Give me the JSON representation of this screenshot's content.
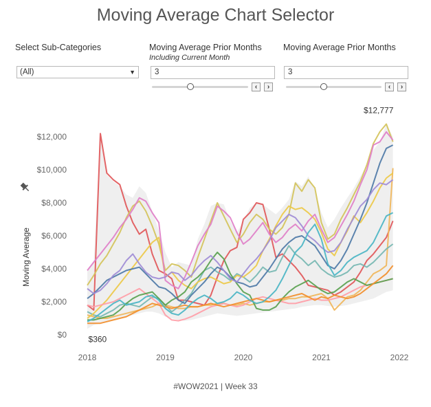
{
  "title": "Moving Average Chart Selector",
  "controls": {
    "subcat_label": "Select Sub-Categories",
    "subcat_value": "(All)",
    "ma1_label": "Moving Average Prior Months",
    "ma1_sublabel": "Including Current Month",
    "ma1_value": "3",
    "ma2_label": "Moving Average Prior Months",
    "ma2_value": "3",
    "dec_symbol": "‹",
    "inc_symbol": "›"
  },
  "footer": "#WOW2021 | Week 33",
  "colors": {
    "band": "#efefef",
    "axis_text": "#666666",
    "series": [
      "#e15759",
      "#d4c35a",
      "#f0b65a",
      "#76b7b2",
      "#edc948",
      "#e07fc8",
      "#ff9da7",
      "#59a14f",
      "#f28e2b",
      "#4e79a7",
      "#a08cd6",
      "#4ab5c4"
    ]
  },
  "chart_data": {
    "type": "line",
    "title": "",
    "ylabel": "Moving Average",
    "xlabel": "",
    "x_ticks": [
      "2018",
      "2019",
      "2020",
      "2021",
      "2022"
    ],
    "y_ticks": [
      "$0",
      "$2,000",
      "$4,000",
      "$6,000",
      "$8,000",
      "$10,000",
      "$12,000"
    ],
    "xlim": [
      2018.0,
      2022.0
    ],
    "ylim": [
      0,
      13000
    ],
    "grid": false,
    "max_label": "$12,777",
    "min_label": "$360",
    "max_point": {
      "x": 2021.83,
      "y": 12777
    },
    "min_point": {
      "x": 2018.04,
      "y": 360
    },
    "x": [
      2018.0,
      2018.083,
      2018.167,
      2018.25,
      2018.333,
      2018.417,
      2018.5,
      2018.583,
      2018.667,
      2018.75,
      2018.833,
      2018.917,
      2019.0,
      2019.083,
      2019.167,
      2019.25,
      2019.333,
      2019.417,
      2019.5,
      2019.583,
      2019.667,
      2019.75,
      2019.833,
      2019.917,
      2020.0,
      2020.083,
      2020.167,
      2020.25,
      2020.333,
      2020.417,
      2020.5,
      2020.583,
      2020.667,
      2020.75,
      2020.833,
      2020.917,
      2021.0,
      2021.083,
      2021.167,
      2021.25,
      2021.333,
      2021.417,
      2021.5,
      2021.583,
      2021.667,
      2021.75,
      2021.833,
      2021.917
    ],
    "band": {
      "upper": [
        3900,
        4500,
        12200,
        9700,
        9300,
        9000,
        8500,
        8300,
        9000,
        8600,
        7500,
        6300,
        5000,
        4100,
        4400,
        4300,
        4200,
        5800,
        6700,
        7800,
        8000,
        7900,
        6900,
        6200,
        6900,
        7700,
        8000,
        7900,
        7600,
        7300,
        7700,
        8200,
        9300,
        9000,
        9600,
        8800,
        7400,
        6500,
        7000,
        7700,
        8300,
        8900,
        9600,
        10300,
        11200,
        11700,
        12777,
        12000
      ],
      "lower": [
        360,
        600,
        700,
        800,
        900,
        1000,
        1100,
        1200,
        1300,
        1400,
        1400,
        1300,
        1100,
        1000,
        900,
        850,
        900,
        1000,
        1100,
        1200,
        1300,
        1250,
        1200,
        1150,
        1200,
        1250,
        1300,
        1350,
        1400,
        1450,
        1500,
        1550,
        1600,
        1700,
        1750,
        1800,
        1800,
        1750,
        1700,
        1750,
        1800,
        1900,
        2000,
        2100,
        2200,
        2400,
        2600,
        2700
      ]
    },
    "series": [
      {
        "values": [
          1800,
          1500,
          12200,
          9800,
          9400,
          9100,
          7800,
          6800,
          6100,
          6400,
          4900,
          3900,
          3700,
          3400,
          2100,
          2100,
          2000,
          1900,
          1800,
          2400,
          3500,
          4500,
          5100,
          5300,
          7000,
          7400,
          8000,
          7900,
          6400,
          4700,
          4900,
          4500,
          4100,
          3600,
          3000,
          2900,
          2800,
          2700,
          2400,
          2600,
          2900,
          3200,
          3800,
          4500,
          4900,
          5400,
          5900,
          6900
        ]
      },
      {
        "values": [
          3000,
          3600,
          4300,
          4800,
          5500,
          6200,
          7100,
          7800,
          8100,
          7500,
          6600,
          5500,
          3900,
          4300,
          4200,
          3900,
          3500,
          4700,
          5800,
          6900,
          8000,
          7200,
          6400,
          5600,
          6100,
          6800,
          7300,
          7000,
          6400,
          6100,
          6500,
          7300,
          9200,
          8700,
          9400,
          8900,
          6800,
          5800,
          6100,
          7000,
          7700,
          8500,
          9300,
          10300,
          11600,
          12300,
          12777,
          11700
        ]
      },
      {
        "values": [
          1200,
          1100,
          1000,
          1000,
          1100,
          1200,
          1300,
          1400,
          1500,
          1600,
          1700,
          1900,
          1800,
          1700,
          1600,
          1600,
          1700,
          1700,
          1800,
          1800,
          1900,
          1900,
          1800,
          1800,
          1900,
          1800,
          1900,
          2000,
          2000,
          2100,
          2100,
          2200,
          2200,
          2300,
          2300,
          2400,
          2500,
          2200,
          1500,
          1900,
          2300,
          2400,
          2700,
          3200,
          3700,
          3900,
          4200,
          10100
        ]
      },
      {
        "values": [
          1400,
          1200,
          1100,
          1300,
          1500,
          1800,
          1900,
          1800,
          1700,
          2000,
          2300,
          2200,
          1800,
          1400,
          1700,
          2100,
          2500,
          3200,
          3900,
          4100,
          3800,
          3600,
          3300,
          3700,
          3500,
          3200,
          3600,
          4100,
          3800,
          3900,
          4700,
          5400,
          4900,
          4600,
          4200,
          4500,
          4000,
          3700,
          3500,
          3600,
          3800,
          4200,
          4300,
          4100,
          4400,
          4800,
          5200,
          5500
        ]
      },
      {
        "values": [
          1000,
          1300,
          1700,
          2100,
          2600,
          3100,
          3600,
          4100,
          4600,
          5100,
          5600,
          5900,
          3500,
          3800,
          3300,
          3000,
          2800,
          3200,
          3400,
          3500,
          3300,
          3100,
          3200,
          3600,
          3500,
          3800,
          4200,
          5100,
          5800,
          6600,
          7300,
          7800,
          7600,
          7700,
          7400,
          7000,
          6200,
          5200,
          4800,
          5600,
          6300,
          7200,
          6800,
          7400,
          8100,
          8900,
          9500,
          9800
        ]
      },
      {
        "values": [
          3900,
          4400,
          4900,
          5400,
          5900,
          6500,
          7000,
          7600,
          8300,
          8100,
          7400,
          6800,
          3300,
          3000,
          2800,
          3500,
          4400,
          5400,
          6100,
          6700,
          7800,
          7500,
          7100,
          6200,
          5500,
          5800,
          6300,
          6800,
          6100,
          5600,
          5900,
          6400,
          6700,
          6300,
          6900,
          7300,
          6400,
          5600,
          5900,
          6600,
          7300,
          8100,
          9100,
          10000,
          11500,
          11700,
          12300,
          11800
        ]
      },
      {
        "values": [
          1800,
          1700,
          1800,
          1900,
          2000,
          2200,
          2400,
          2600,
          2800,
          2500,
          2200,
          1900,
          1200,
          900,
          850,
          950,
          1100,
          1300,
          1500,
          1700,
          1800,
          1900,
          1800,
          1700,
          1800,
          2000,
          2200,
          2300,
          2200,
          2100,
          2000,
          1900,
          1900,
          2000,
          2100,
          2200,
          2100,
          2100,
          2200,
          2300,
          2500,
          2700,
          2900,
          3000,
          3100,
          3200,
          3300,
          3400
        ]
      },
      {
        "values": [
          900,
          900,
          1000,
          1100,
          1200,
          1500,
          1900,
          2200,
          2400,
          2500,
          2600,
          2200,
          1800,
          2100,
          2300,
          2600,
          3200,
          3500,
          3900,
          4500,
          5000,
          4600,
          3700,
          3100,
          2600,
          2400,
          1600,
          1500,
          1500,
          1700,
          2200,
          2600,
          2900,
          3100,
          3300,
          3000,
          2700,
          2500,
          2600,
          2900,
          3200,
          3400,
          3200,
          3000,
          3100,
          3200,
          3300,
          3400
        ]
      },
      {
        "values": [
          700,
          700,
          700,
          800,
          900,
          1000,
          1100,
          1300,
          1500,
          1700,
          1900,
          1800,
          1700,
          1600,
          1700,
          1800,
          1700,
          1700,
          1800,
          1900,
          1800,
          1700,
          1800,
          1900,
          2000,
          2100,
          2200,
          2100,
          2000,
          2100,
          2200,
          2300,
          2400,
          2500,
          2300,
          2100,
          2300,
          2200,
          2400,
          2300,
          2200,
          2300,
          2500,
          2800,
          3100,
          3400,
          3700,
          4200
        ]
      },
      {
        "values": [
          2200,
          2500,
          2900,
          3300,
          3500,
          3700,
          3900,
          4000,
          4100,
          3700,
          3300,
          2900,
          2800,
          2500,
          2100,
          1900,
          2400,
          2800,
          3200,
          3700,
          4100,
          3900,
          3500,
          3200,
          3100,
          2900,
          3000,
          3500,
          4000,
          4600,
          5200,
          5600,
          5900,
          6000,
          5700,
          5400,
          4800,
          4200,
          4000,
          4500,
          5200,
          6100,
          7000,
          8000,
          9200,
          10400,
          11300,
          11500
        ]
      },
      {
        "values": [
          2800,
          2500,
          2700,
          3100,
          3600,
          3900,
          4500,
          4900,
          4300,
          3800,
          3500,
          3400,
          3500,
          3800,
          3700,
          3300,
          3600,
          4100,
          4500,
          4800,
          4400,
          3900,
          3400,
          3200,
          3700,
          4200,
          4600,
          5100,
          5700,
          6500,
          6900,
          7300,
          7100,
          6600,
          6000,
          5700,
          5300,
          5000,
          5100,
          5600,
          6400,
          7100,
          7800,
          8200,
          8800,
          9200,
          9100,
          9400
        ]
      },
      {
        "values": [
          800,
          1000,
          1300,
          1600,
          1900,
          2100,
          1800,
          1900,
          2000,
          2300,
          2400,
          2100,
          1600,
          1300,
          1200,
          1500,
          1900,
          2200,
          2400,
          2200,
          1900,
          2000,
          2200,
          2600,
          2400,
          2100,
          1900,
          2000,
          2300,
          2700,
          3400,
          4200,
          5000,
          5400,
          6200,
          6700,
          5800,
          4300,
          3600,
          3900,
          4400,
          4700,
          4900,
          5100,
          5600,
          6400,
          7200,
          7400
        ]
      }
    ]
  }
}
